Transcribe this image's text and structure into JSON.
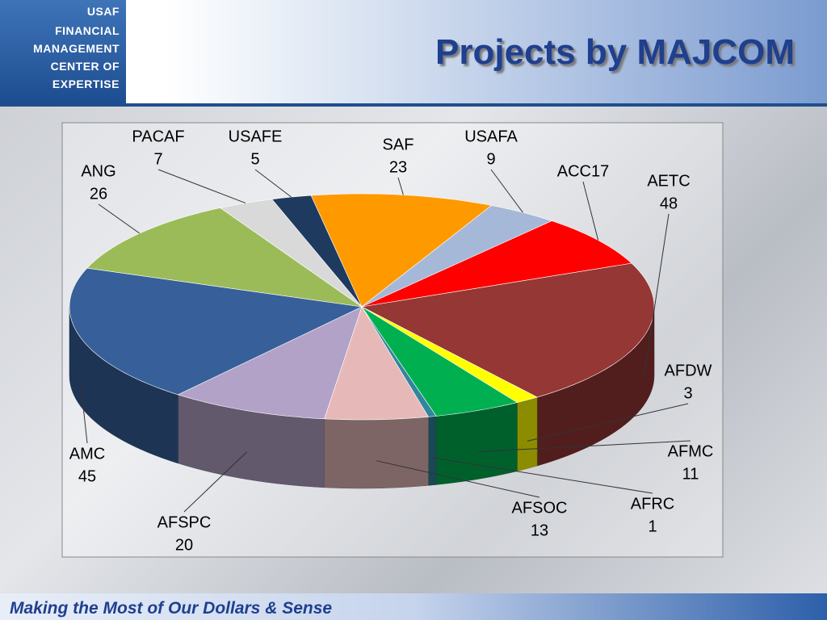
{
  "logo": {
    "lines": [
      "USAF",
      "FINANCIAL",
      "MANAGEMENT",
      "CENTER OF",
      "EXPERTISE"
    ]
  },
  "footer": "Making the Most of Our Dollars & Sense",
  "chart_data": {
    "type": "pie3d",
    "title": "Projects by MAJCOM",
    "categories": [
      "SAF",
      "USAFA",
      "ACC17",
      "AETC",
      "AFDW",
      "AFMC",
      "AFRC",
      "AFSOC",
      "AFSPC",
      "AMC",
      "ANG",
      "PACAF",
      "USAFE"
    ],
    "values": [
      23,
      9,
      17,
      48,
      3,
      11,
      1,
      13,
      20,
      45,
      26,
      7,
      5
    ],
    "value_labels": [
      "23",
      "9",
      null,
      "48",
      "3",
      "11",
      "1",
      "13",
      "20",
      "45",
      "26",
      "7",
      "5"
    ],
    "colors": [
      "#ff9900",
      "#a6b8d8",
      "#ff0000",
      "#953735",
      "#ffff00",
      "#00b050",
      "#31859c",
      "#e6b9b8",
      "#b3a2c7",
      "#37609a",
      "#9bbb59",
      "#d9d9d9",
      "#1f3a5f"
    ]
  }
}
